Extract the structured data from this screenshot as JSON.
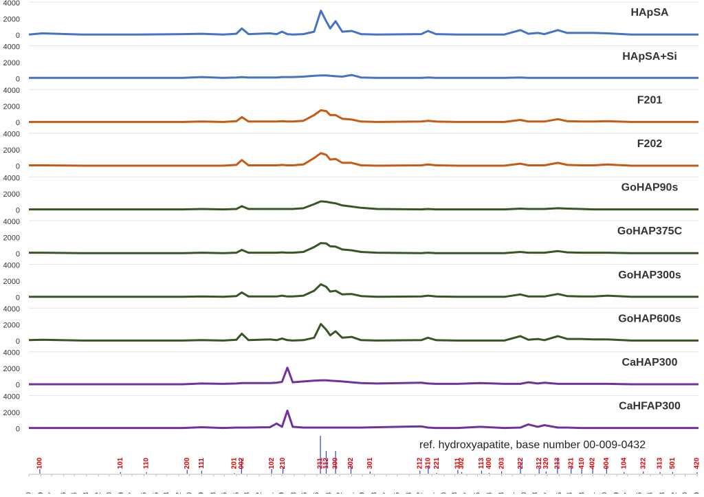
{
  "chart_data": [
    {
      "type": "line",
      "x": [
        10,
        11,
        14,
        18,
        21.5,
        22.9,
        24.5,
        25.5,
        25.9,
        26.4,
        28,
        28.5,
        28.9,
        29.3,
        29.7,
        30.5,
        31.3,
        31.8,
        32.2,
        32.5,
        32.9,
        33.4,
        34.1,
        34.8,
        36,
        39.3,
        39.8,
        40.4,
        42,
        43.7,
        45.5,
        46.7,
        47.3,
        48,
        48.5,
        49.5,
        50.2,
        51.2,
        52.2,
        53.2,
        55,
        60
      ],
      "xlim": [
        10,
        60
      ],
      "xticks": [
        {
          "value": 10.0,
          "label": "10,0"
        },
        {
          "value": 10.9,
          "label": "10,9"
        },
        {
          "value": 11.7,
          "label": "11,7"
        },
        {
          "value": 12.6,
          "label": "12,6"
        },
        {
          "value": 13.4,
          "label": "13,4"
        },
        {
          "value": 14.3,
          "label": "14,3"
        },
        {
          "value": 15.2,
          "label": "15,2"
        },
        {
          "value": 16.0,
          "label": "16,0"
        },
        {
          "value": 16.9,
          "label": "16,9"
        },
        {
          "value": 17.7,
          "label": "17,7"
        },
        {
          "value": 18.6,
          "label": "18,6"
        },
        {
          "value": 19.5,
          "label": "19,5"
        },
        {
          "value": 20.3,
          "label": "20,3"
        },
        {
          "value": 21.2,
          "label": "21,2"
        },
        {
          "value": 22.0,
          "label": "22,0"
        },
        {
          "value": 22.9,
          "label": "22,9"
        },
        {
          "value": 23.8,
          "label": "23,8"
        },
        {
          "value": 24.6,
          "label": "24,6"
        },
        {
          "value": 25.5,
          "label": "25,5"
        },
        {
          "value": 26.3,
          "label": "26,3"
        },
        {
          "value": 27.2,
          "label": "27,2"
        },
        {
          "value": 28.1,
          "label": "28,1"
        },
        {
          "value": 28.9,
          "label": "28,9"
        },
        {
          "value": 29.8,
          "label": "29,8"
        },
        {
          "value": 30.6,
          "label": "30,6"
        },
        {
          "value": 31.5,
          "label": "31,5"
        },
        {
          "value": 32.4,
          "label": "32,4"
        },
        {
          "value": 33.2,
          "label": "33,2"
        },
        {
          "value": 34.1,
          "label": "34,1"
        },
        {
          "value": 34.9,
          "label": "34,9"
        },
        {
          "value": 35.8,
          "label": "35,8"
        },
        {
          "value": 36.7,
          "label": "36,7"
        },
        {
          "value": 37.5,
          "label": "37,5"
        },
        {
          "value": 38.4,
          "label": "38,4"
        },
        {
          "value": 39.2,
          "label": "39,2"
        },
        {
          "value": 40.1,
          "label": "40,1"
        },
        {
          "value": 41.0,
          "label": "41,0"
        },
        {
          "value": 41.8,
          "label": "41,8"
        },
        {
          "value": 42.7,
          "label": "42,7"
        },
        {
          "value": 43.5,
          "label": "43,5"
        },
        {
          "value": 44.4,
          "label": "44,4"
        },
        {
          "value": 45.3,
          "label": "45,3"
        },
        {
          "value": 46.1,
          "label": "46,1"
        },
        {
          "value": 47.0,
          "label": "47,0"
        },
        {
          "value": 47.8,
          "label": "47,8"
        },
        {
          "value": 48.7,
          "label": "48,7"
        },
        {
          "value": 49.6,
          "label": "49,6"
        },
        {
          "value": 50.4,
          "label": "50,4"
        },
        {
          "value": 51.3,
          "label": "51,3"
        },
        {
          "value": 52.1,
          "label": "52,1"
        },
        {
          "value": 53.0,
          "label": "53,0"
        },
        {
          "value": 53.9,
          "label": "53,9"
        },
        {
          "value": 54.7,
          "label": "54,7"
        },
        {
          "value": 55.6,
          "label": "55,6"
        },
        {
          "value": 56.4,
          "label": "56,4"
        },
        {
          "value": 57.3,
          "label": "57,3"
        },
        {
          "value": 58.2,
          "label": "58,2"
        },
        {
          "value": 59.0,
          "label": "59,0"
        },
        {
          "value": 59.9,
          "label": "59,9"
        }
      ],
      "ylim": [
        0,
        4000
      ],
      "yticks": [
        0,
        2000,
        4000
      ],
      "series": [
        {
          "name": "HApSA",
          "color": "#4472c4",
          "values": [
            150,
            300,
            150,
            150,
            200,
            250,
            150,
            250,
            900,
            200,
            300,
            200,
            500,
            200,
            150,
            200,
            500,
            3100,
            1800,
            900,
            1800,
            500,
            600,
            200,
            150,
            200,
            600,
            200,
            150,
            150,
            150,
            700,
            250,
            350,
            200,
            700,
            350,
            350,
            350,
            300,
            150,
            150
          ]
        },
        {
          "name": "HApSA+Si",
          "color": "#4472c4",
          "values": [
            200,
            200,
            200,
            200,
            200,
            300,
            200,
            250,
            300,
            250,
            250,
            250,
            300,
            300,
            300,
            350,
            450,
            500,
            500,
            450,
            400,
            350,
            550,
            250,
            200,
            200,
            250,
            200,
            200,
            200,
            200,
            250,
            200,
            200,
            200,
            200,
            200,
            200,
            200,
            200,
            200,
            200
          ]
        },
        {
          "name": "F201",
          "color": "#c55a11",
          "values": [
            150,
            150,
            150,
            150,
            150,
            200,
            150,
            250,
            750,
            200,
            200,
            200,
            250,
            200,
            200,
            300,
            1000,
            1600,
            1500,
            1000,
            1000,
            550,
            450,
            200,
            150,
            200,
            300,
            200,
            150,
            150,
            150,
            400,
            200,
            200,
            200,
            500,
            250,
            200,
            200,
            250,
            150,
            150
          ]
        },
        {
          "name": "F202",
          "color": "#c55a11",
          "values": [
            200,
            200,
            150,
            150,
            150,
            150,
            150,
            250,
            850,
            200,
            200,
            200,
            250,
            200,
            200,
            300,
            1100,
            1700,
            1500,
            900,
            1000,
            500,
            500,
            200,
            150,
            200,
            300,
            200,
            150,
            150,
            150,
            400,
            200,
            200,
            200,
            500,
            250,
            200,
            200,
            300,
            150,
            150
          ]
        },
        {
          "name": "GoHAP90s",
          "color": "#375623",
          "values": [
            150,
            150,
            150,
            150,
            150,
            200,
            150,
            200,
            550,
            200,
            200,
            200,
            200,
            200,
            200,
            300,
            800,
            1150,
            1100,
            1000,
            900,
            650,
            500,
            350,
            200,
            150,
            200,
            150,
            150,
            150,
            150,
            250,
            200,
            200,
            200,
            300,
            250,
            200,
            150,
            150,
            150,
            150
          ]
        },
        {
          "name": "GoHAP375C",
          "color": "#375623",
          "values": [
            200,
            200,
            150,
            150,
            150,
            200,
            150,
            200,
            550,
            200,
            200,
            200,
            250,
            200,
            200,
            300,
            900,
            1400,
            1350,
            1000,
            950,
            600,
            500,
            300,
            200,
            150,
            200,
            150,
            150,
            150,
            150,
            300,
            200,
            200,
            200,
            400,
            250,
            200,
            200,
            200,
            150,
            150
          ]
        },
        {
          "name": "GoHAP300s",
          "color": "#375623",
          "values": [
            150,
            150,
            150,
            150,
            150,
            200,
            150,
            250,
            700,
            200,
            200,
            200,
            300,
            200,
            200,
            300,
            900,
            1700,
            1400,
            800,
            900,
            450,
            500,
            250,
            150,
            200,
            300,
            200,
            150,
            150,
            150,
            450,
            200,
            200,
            200,
            500,
            250,
            200,
            200,
            300,
            150,
            150
          ]
        },
        {
          "name": "GoHAP600s",
          "color": "#375623",
          "values": [
            200,
            250,
            150,
            150,
            150,
            200,
            150,
            250,
            1000,
            200,
            300,
            200,
            400,
            200,
            150,
            200,
            500,
            2200,
            1500,
            800,
            1300,
            500,
            600,
            200,
            150,
            200,
            500,
            200,
            150,
            150,
            150,
            700,
            250,
            350,
            200,
            700,
            350,
            350,
            300,
            300,
            150,
            150
          ]
        },
        {
          "name": "CaHAP300",
          "color": "#7030a0",
          "values": [
            150,
            150,
            150,
            150,
            150,
            250,
            200,
            250,
            300,
            300,
            300,
            350,
            450,
            2200,
            400,
            500,
            600,
            650,
            650,
            600,
            550,
            500,
            400,
            300,
            250,
            350,
            250,
            200,
            200,
            300,
            200,
            200,
            400,
            250,
            350,
            200,
            200,
            200,
            200,
            200,
            150,
            150
          ]
        },
        {
          "name": "CaHFAP300",
          "color": "#7030a0",
          "values": [
            150,
            150,
            150,
            150,
            150,
            250,
            150,
            200,
            200,
            200,
            250,
            700,
            300,
            2300,
            300,
            200,
            200,
            200,
            200,
            200,
            200,
            200,
            200,
            200,
            250,
            350,
            200,
            150,
            150,
            300,
            150,
            200,
            600,
            300,
            500,
            200,
            200,
            150,
            150,
            150,
            150,
            150
          ]
        }
      ]
    },
    {
      "type": "stem",
      "title": "ref. hydroxyapatite, base number 00-009-0432",
      "x": [
        10.82,
        16.84,
        18.78,
        21.82,
        22.9,
        25.35,
        25.88,
        28.13,
        28.97,
        31.77,
        32.2,
        32.9,
        34.05,
        35.48,
        39.2,
        39.82,
        40.45,
        42.03,
        42.32,
        43.8,
        44.37,
        45.3,
        46.71,
        48.1,
        48.62,
        49.47,
        50.49,
        51.28,
        52.1,
        53.14,
        54.44,
        55.88,
        57.13,
        58.07,
        59.9
      ],
      "values": [
        12,
        4,
        4,
        10,
        8,
        2,
        40,
        12,
        18,
        100,
        60,
        60,
        25,
        6,
        8,
        20,
        2,
        10,
        4,
        8,
        2,
        6,
        30,
        16,
        6,
        40,
        20,
        12,
        16,
        20,
        4,
        6,
        4,
        4,
        4
      ],
      "labels": [
        "100",
        "101",
        "110",
        "200",
        "111",
        "201",
        "002",
        "102",
        "210",
        "211",
        "112",
        "300",
        "202",
        "301",
        "212",
        "310",
        "221",
        "311",
        "302",
        "113",
        "400",
        "203",
        "222",
        "312",
        "320",
        "213",
        "321",
        "410",
        "402",
        "004",
        "104",
        "322",
        "313",
        "501",
        "420"
      ],
      "xlim": [
        10,
        60
      ],
      "ylim": [
        0,
        100
      ],
      "color": "#2f3fd0",
      "label_color": "#e00000"
    }
  ]
}
